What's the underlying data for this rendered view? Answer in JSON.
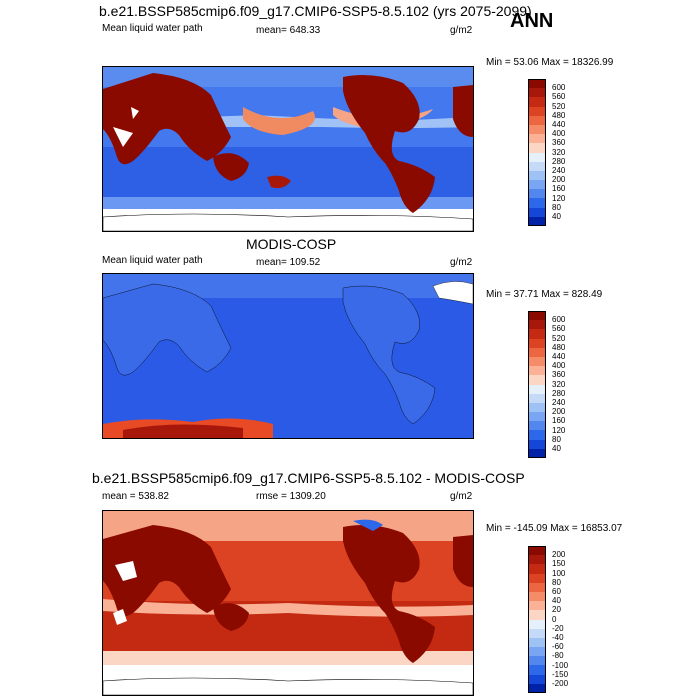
{
  "season": "ANN",
  "panels": [
    {
      "title": "b.e21.BSSP585cmip6.f09_g17.CMIP6-SSP5-8.5.102 (yrs 2075-2099)",
      "left_label": "Mean liquid water path",
      "center_label": "mean= 648.33",
      "units": "g/m2",
      "minmax": "Min =  53.06 Max = 18326.99",
      "colorbar_labels": [
        "600",
        "560",
        "520",
        "480",
        "440",
        "400",
        "360",
        "320",
        "280",
        "240",
        "200",
        "160",
        "120",
        "80",
        "40"
      ],
      "colorbar_colors": [
        "#8b0a00",
        "#a8180a",
        "#c42a12",
        "#dc4322",
        "#ec6642",
        "#f58c68",
        "#fab196",
        "#fcd6c4",
        "#e6f0fa",
        "#c4daf6",
        "#9fc2f4",
        "#78a6f2",
        "#5288ee",
        "#2e68ea",
        "#1446d8",
        "#0022a8"
      ]
    },
    {
      "title": "MODIS-COSP",
      "left_label": "Mean liquid water path",
      "center_label": "mean= 109.52",
      "units": "g/m2",
      "minmax": "Min =  37.71 Max = 828.49",
      "colorbar_labels": [
        "600",
        "560",
        "520",
        "480",
        "440",
        "400",
        "360",
        "320",
        "280",
        "240",
        "200",
        "160",
        "120",
        "80",
        "40"
      ],
      "colorbar_colors": [
        "#8b0a00",
        "#a8180a",
        "#c42a12",
        "#dc4322",
        "#ec6642",
        "#f58c68",
        "#fab196",
        "#fcd6c4",
        "#e6f0fa",
        "#c4daf6",
        "#9fc2f4",
        "#78a6f2",
        "#5288ee",
        "#2e68ea",
        "#1446d8",
        "#0022a8"
      ]
    },
    {
      "title": "b.e21.BSSP585cmip6.f09_g17.CMIP6-SSP5-8.5.102 - MODIS-COSP",
      "left_label": "mean = 538.82",
      "center_label": "rmse = 1309.20",
      "units": "g/m2",
      "minmax": "Min = -145.09 Max = 16853.07",
      "colorbar_labels": [
        "200",
        "150",
        "100",
        "80",
        "60",
        "40",
        "20",
        "0",
        "-20",
        "-40",
        "-60",
        "-80",
        "-100",
        "-150",
        "-200"
      ],
      "colorbar_colors": [
        "#8b0a00",
        "#a8180a",
        "#c42a12",
        "#dc4322",
        "#ec6642",
        "#f58c68",
        "#fab196",
        "#fcd6c4",
        "#e6f0fa",
        "#c4daf6",
        "#9fc2f4",
        "#78a6f2",
        "#5288ee",
        "#2e68ea",
        "#1446d8",
        "#0022a8"
      ]
    }
  ]
}
